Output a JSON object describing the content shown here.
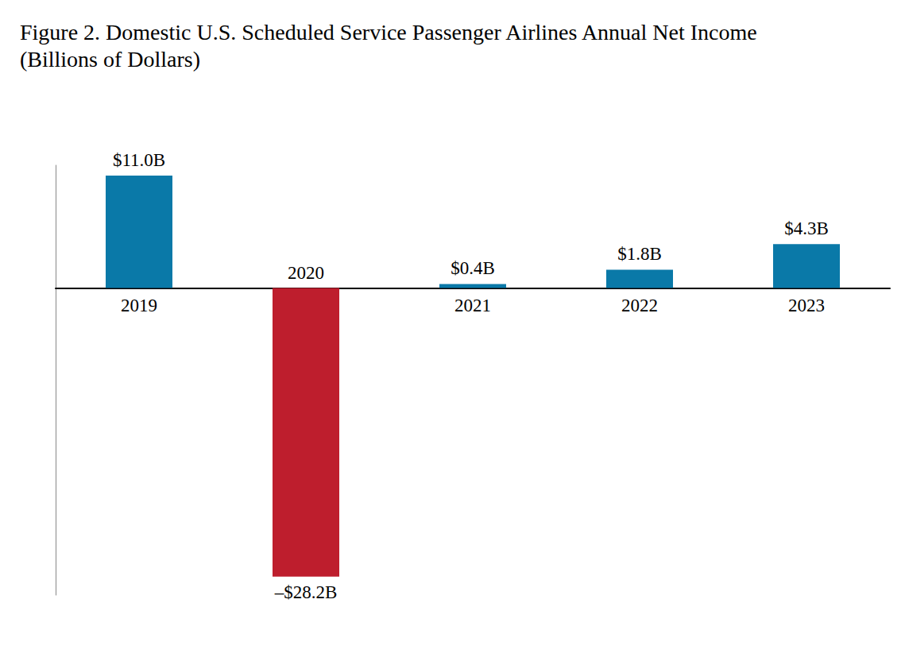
{
  "chart_data": {
    "type": "bar",
    "title": "Figure 2. Domestic U.S. Scheduled Service Passenger Airlines Annual Net Income (Billions of Dollars)",
    "categories": [
      "2019",
      "2020",
      "2021",
      "2022",
      "2023"
    ],
    "values": [
      11.0,
      -28.2,
      0.4,
      1.8,
      4.3
    ],
    "value_labels": [
      "$11.0B",
      "–$28.2B",
      "$0.4B",
      "$1.8B",
      "$4.3B"
    ],
    "colors": [
      "#0a79a8",
      "#be1e2d",
      "#0a79a8",
      "#0a79a8",
      "#0a79a8"
    ],
    "ylim": [
      -30,
      12
    ],
    "grid": false,
    "data_labels": true,
    "tick_labels": "x"
  }
}
